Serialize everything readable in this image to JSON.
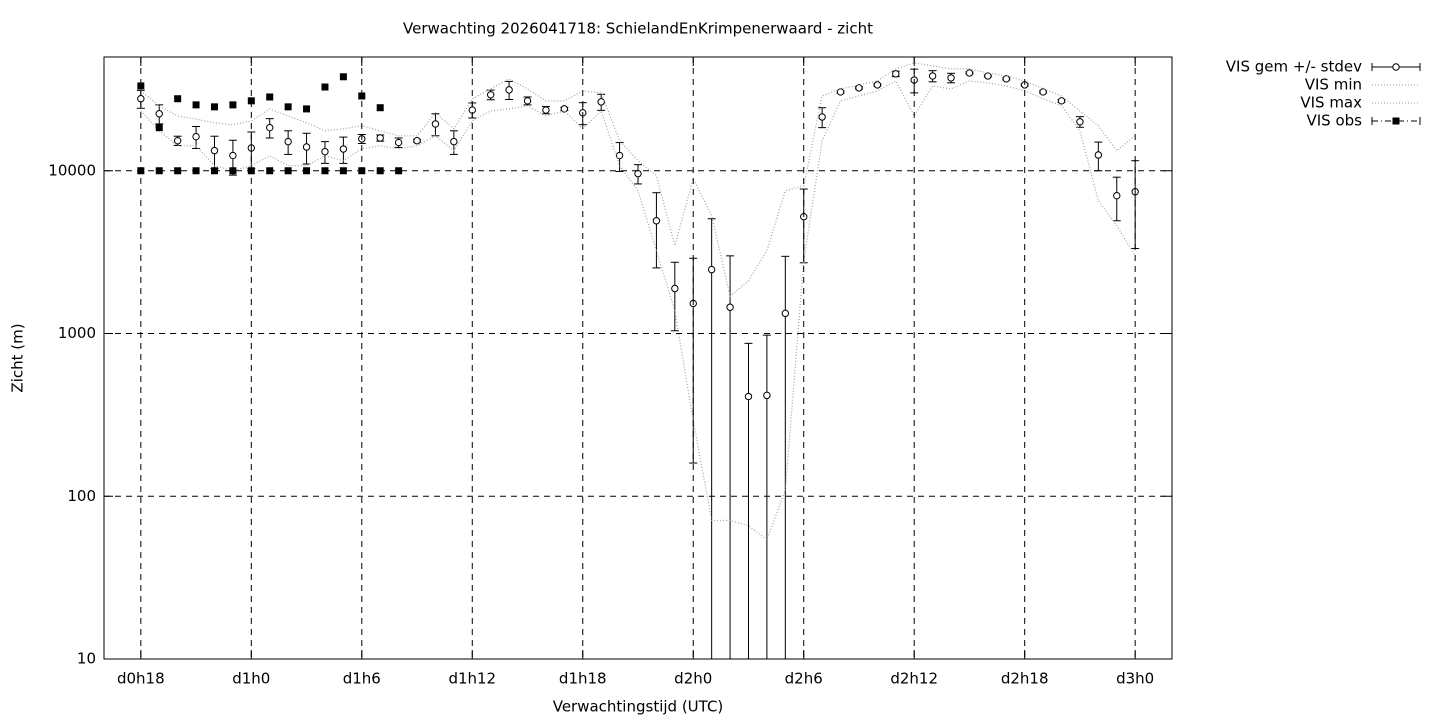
{
  "chart_data": {
    "type": "line",
    "title": "Verwachting 2026041718: SchielandEnKrimpenerwaard - zicht",
    "xlabel": "Verwachtingstijd (UTC)",
    "ylabel": "Zicht (m)",
    "x": [
      18,
      19,
      20,
      21,
      22,
      23,
      24,
      25,
      26,
      27,
      28,
      29,
      30,
      31,
      32,
      33,
      34,
      35,
      36,
      37,
      38,
      39,
      40,
      41,
      42,
      43,
      44,
      45,
      46,
      47,
      48,
      49,
      50,
      51,
      52,
      53,
      54,
      55,
      56,
      57,
      58,
      59,
      60,
      61,
      62,
      63,
      64,
      65,
      66,
      67,
      68,
      69,
      70,
      71,
      72
    ],
    "xlim": [
      16,
      74
    ],
    "xticks": [
      {
        "value": 18,
        "label": "d0h18"
      },
      {
        "value": 24,
        "label": "d1h0"
      },
      {
        "value": 30,
        "label": "d1h6"
      },
      {
        "value": 36,
        "label": "d1h12"
      },
      {
        "value": 42,
        "label": "d1h18"
      },
      {
        "value": 48,
        "label": "d2h0"
      },
      {
        "value": 54,
        "label": "d2h6"
      },
      {
        "value": 60,
        "label": "d2h12"
      },
      {
        "value": 66,
        "label": "d2h18"
      },
      {
        "value": 72,
        "label": "d3h0"
      }
    ],
    "ylim": [
      10,
      50000
    ],
    "yticks": [
      10,
      100,
      1000,
      10000
    ],
    "ylog": true,
    "grid": true,
    "legend": "outside-right",
    "series": [
      {
        "name": "VIS gem +/- stdev",
        "color": "#000000",
        "marker": "open-circle",
        "values": [
          27700,
          22400,
          15300,
          16200,
          13300,
          12400,
          13800,
          18400,
          15100,
          14000,
          13100,
          13600,
          15700,
          15900,
          14900,
          15300,
          19400,
          15100,
          23600,
          29300,
          31400,
          26900,
          23600,
          24000,
          22700,
          26500,
          12400,
          9600,
          4930,
          1890,
          1530,
          2470,
          1450,
          410,
          417,
          1330,
          5220,
          21400,
          30500,
          32300,
          33700,
          39400,
          36100,
          38200,
          37200,
          39900,
          38200,
          36700,
          33700,
          30500,
          26900,
          20000,
          12500,
          7030,
          7430
        ],
        "errors": [
          3500,
          3000,
          1000,
          2500,
          3000,
          3000,
          3500,
          2500,
          2500,
          3000,
          2000,
          2500,
          1000,
          700,
          1000,
          300,
          3000,
          2500,
          2500,
          2000,
          4000,
          1500,
          1200,
          500,
          3500,
          3000,
          2500,
          1300,
          2400,
          850,
          1370,
          2600,
          1550,
          460,
          560,
          1650,
          2500,
          3000,
          500,
          500,
          500,
          1500,
          6000,
          3000,
          2500,
          500,
          500,
          500,
          500,
          500,
          500,
          1500,
          2500,
          2100,
          4100
        ]
      },
      {
        "name": "VIS min",
        "color": "#a0a0a0",
        "dash": "dotted",
        "values": [
          23330,
          17590,
          14230,
          14230,
          10740,
          10000,
          10740,
          12360,
          10740,
          10740,
          12360,
          11520,
          13650,
          14230,
          13650,
          14230,
          16400,
          13270,
          20260,
          23330,
          23990,
          25060,
          21750,
          23330,
          18110,
          23330,
          10740,
          7540,
          3230,
          1380,
          292,
          71,
          71,
          66,
          54,
          109,
          2800,
          15280,
          26870,
          28840,
          30970,
          35650,
          21750,
          33200,
          31840,
          35650,
          34670,
          33200,
          30970,
          27670,
          25060,
          17590,
          6540,
          4600,
          3010
        ]
      },
      {
        "name": "VIS max",
        "color": "#a0a0a0",
        "dash": "dotted",
        "values": [
          31000,
          25000,
          21700,
          20800,
          19700,
          19150,
          20260,
          23990,
          21700,
          19700,
          17590,
          18110,
          18890,
          17590,
          16400,
          16400,
          22700,
          18110,
          27670,
          31840,
          36650,
          31840,
          26870,
          26870,
          30970,
          30120,
          15280,
          11520,
          9310,
          3470,
          8930,
          5300,
          1690,
          2110,
          3230,
          7540,
          8090,
          28840,
          31840,
          33700,
          35650,
          42270,
          46000,
          44060,
          42270,
          42270,
          39900,
          38280,
          35650,
          31840,
          28840,
          23330,
          18890,
          13270,
          16400
        ]
      },
      {
        "name": "VIS obs",
        "color": "#000000",
        "marker": "square",
        "x": [
          18,
          19,
          20,
          21,
          22,
          23,
          24,
          25,
          26,
          27,
          28,
          29,
          30,
          31,
          18,
          19,
          20,
          21,
          22,
          23,
          24,
          25,
          26,
          27,
          28,
          29,
          30,
          31,
          32
        ],
        "values": [
          33200,
          18400,
          27700,
          25400,
          24700,
          25400,
          26900,
          28400,
          24700,
          23990,
          32700,
          37800,
          28800,
          24400,
          10000,
          10000,
          10000,
          10000,
          10000,
          10000,
          10000,
          10000,
          10000,
          10000,
          10000,
          10000,
          10000,
          10000,
          10000
        ]
      }
    ]
  }
}
